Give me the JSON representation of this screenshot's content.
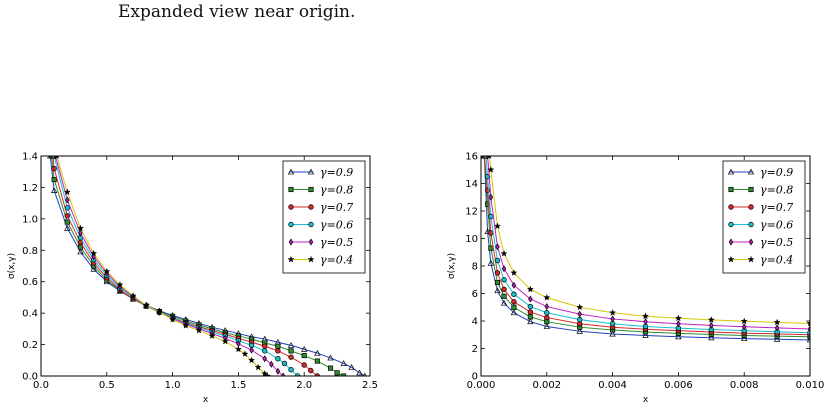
{
  "caption": "Expanded view near origin.",
  "chart_data": [
    {
      "type": "line",
      "xlabel": "x",
      "ylabel": "σ(x,γ)",
      "xlim": [
        0.0,
        2.5
      ],
      "ylim": [
        0.0,
        1.4
      ],
      "xticks": [
        "0.0",
        "0.5",
        "1.0",
        "1.5",
        "2.0",
        "2.5"
      ],
      "yticks": [
        "0.0",
        "0.2",
        "0.4",
        "0.6",
        "0.8",
        "1.0",
        "1.2",
        "1.4"
      ],
      "grid": false,
      "legend_position": "top-right",
      "series": [
        {
          "name": "γ=0.9",
          "color": "#1f3fbf",
          "marker": "triangle",
          "x": [
            0.07,
            0.1,
            0.2,
            0.3,
            0.4,
            0.5,
            0.6,
            0.7,
            0.8,
            0.9,
            1.0,
            1.1,
            1.2,
            1.3,
            1.4,
            1.5,
            1.6,
            1.7,
            1.8,
            1.9,
            2.0,
            2.1,
            2.2,
            2.3,
            2.36,
            2.42,
            2.46
          ],
          "y": [
            1.4,
            1.18,
            0.94,
            0.79,
            0.68,
            0.6,
            0.54,
            0.49,
            0.45,
            0.415,
            0.385,
            0.36,
            0.335,
            0.31,
            0.29,
            0.27,
            0.25,
            0.235,
            0.215,
            0.195,
            0.17,
            0.145,
            0.115,
            0.08,
            0.055,
            0.02,
            0.0
          ]
        },
        {
          "name": "γ=0.8",
          "color": "#2e8b2e",
          "marker": "square",
          "x": [
            0.08,
            0.1,
            0.2,
            0.3,
            0.4,
            0.5,
            0.6,
            0.7,
            0.8,
            0.9,
            1.0,
            1.1,
            1.2,
            1.3,
            1.4,
            1.5,
            1.6,
            1.7,
            1.8,
            1.9,
            2.0,
            2.1,
            2.2,
            2.25,
            2.3
          ],
          "y": [
            1.4,
            1.25,
            0.98,
            0.82,
            0.7,
            0.61,
            0.545,
            0.49,
            0.445,
            0.41,
            0.38,
            0.35,
            0.325,
            0.3,
            0.275,
            0.255,
            0.235,
            0.21,
            0.19,
            0.16,
            0.13,
            0.095,
            0.05,
            0.02,
            0.0
          ]
        },
        {
          "name": "γ=0.7",
          "color": "#d62728",
          "marker": "circle",
          "x": [
            0.09,
            0.1,
            0.2,
            0.3,
            0.4,
            0.5,
            0.6,
            0.7,
            0.8,
            0.9,
            1.0,
            1.1,
            1.2,
            1.3,
            1.4,
            1.5,
            1.6,
            1.7,
            1.8,
            1.9,
            2.0,
            2.05,
            2.1
          ],
          "y": [
            1.4,
            1.32,
            1.02,
            0.85,
            0.72,
            0.625,
            0.55,
            0.49,
            0.445,
            0.405,
            0.37,
            0.34,
            0.315,
            0.29,
            0.265,
            0.24,
            0.215,
            0.19,
            0.16,
            0.12,
            0.07,
            0.035,
            0.0
          ]
        },
        {
          "name": "γ=0.6",
          "color": "#17becf",
          "marker": "circle",
          "x": [
            0.1,
            0.2,
            0.3,
            0.4,
            0.5,
            0.6,
            0.7,
            0.8,
            0.9,
            1.0,
            1.1,
            1.2,
            1.3,
            1.4,
            1.5,
            1.6,
            1.7,
            1.8,
            1.85,
            1.9,
            1.95
          ],
          "y": [
            1.4,
            1.07,
            0.88,
            0.74,
            0.64,
            0.56,
            0.5,
            0.445,
            0.405,
            0.37,
            0.335,
            0.31,
            0.28,
            0.255,
            0.225,
            0.195,
            0.16,
            0.11,
            0.08,
            0.04,
            0.0
          ]
        },
        {
          "name": "γ=0.5",
          "color": "#c020c0",
          "marker": "diamond",
          "x": [
            0.11,
            0.2,
            0.3,
            0.4,
            0.5,
            0.6,
            0.7,
            0.8,
            0.9,
            1.0,
            1.1,
            1.2,
            1.3,
            1.4,
            1.5,
            1.6,
            1.7,
            1.75,
            1.8,
            1.84
          ],
          "y": [
            1.4,
            1.12,
            0.91,
            0.76,
            0.655,
            0.57,
            0.505,
            0.45,
            0.405,
            0.365,
            0.33,
            0.3,
            0.27,
            0.24,
            0.205,
            0.165,
            0.11,
            0.075,
            0.03,
            0.0
          ]
        },
        {
          "name": "γ=0.4",
          "color": "#d4c800",
          "marker": "star",
          "x": [
            0.12,
            0.2,
            0.3,
            0.4,
            0.5,
            0.6,
            0.7,
            0.8,
            0.9,
            1.0,
            1.1,
            1.2,
            1.3,
            1.4,
            1.5,
            1.55,
            1.6,
            1.65,
            1.7,
            1.72
          ],
          "y": [
            1.4,
            1.17,
            0.94,
            0.78,
            0.665,
            0.58,
            0.51,
            0.45,
            0.405,
            0.36,
            0.32,
            0.29,
            0.255,
            0.22,
            0.17,
            0.14,
            0.1,
            0.055,
            0.015,
            0.0
          ]
        }
      ]
    },
    {
      "type": "line",
      "xlabel": "x",
      "ylabel": "σ(x,γ)",
      "xlim": [
        0.0,
        0.01
      ],
      "ylim": [
        0,
        16
      ],
      "xticks": [
        "0.000",
        "0.002",
        "0.004",
        "0.006",
        "0.008",
        "0.010"
      ],
      "yticks": [
        "0",
        "2",
        "4",
        "6",
        "8",
        "10",
        "12",
        "14",
        "16"
      ],
      "grid": false,
      "legend_position": "top-right",
      "series": [
        {
          "name": "γ=0.9",
          "color": "#1f3fbf",
          "marker": "triangle",
          "x": [
            0.0001,
            0.0002,
            0.0003,
            0.0005,
            0.0007,
            0.001,
            0.0015,
            0.002,
            0.003,
            0.004,
            0.005,
            0.006,
            0.007,
            0.008,
            0.009,
            0.01
          ],
          "y": [
            16,
            10.5,
            8.2,
            6.2,
            5.3,
            4.6,
            3.95,
            3.6,
            3.25,
            3.05,
            2.95,
            2.85,
            2.78,
            2.72,
            2.67,
            2.62
          ]
        },
        {
          "name": "γ=0.8",
          "color": "#2e8b2e",
          "marker": "square",
          "x": [
            0.0001,
            0.0002,
            0.0003,
            0.0005,
            0.0007,
            0.001,
            0.0015,
            0.002,
            0.003,
            0.004,
            0.005,
            0.006,
            0.007,
            0.008,
            0.009,
            0.01
          ],
          "y": [
            16,
            12.5,
            9.3,
            6.8,
            5.8,
            5.0,
            4.3,
            3.95,
            3.55,
            3.35,
            3.2,
            3.1,
            3.02,
            2.95,
            2.9,
            2.85
          ]
        },
        {
          "name": "γ=0.7",
          "color": "#d62728",
          "marker": "circle",
          "x": [
            0.0001,
            0.0002,
            0.0003,
            0.0005,
            0.0007,
            0.001,
            0.0015,
            0.002,
            0.003,
            0.004,
            0.005,
            0.006,
            0.007,
            0.008,
            0.009,
            0.01
          ],
          "y": [
            16,
            13.5,
            10.4,
            7.5,
            6.3,
            5.4,
            4.65,
            4.25,
            3.8,
            3.55,
            3.4,
            3.3,
            3.2,
            3.12,
            3.06,
            3.0
          ]
        },
        {
          "name": "γ=0.6",
          "color": "#17becf",
          "marker": "circle",
          "x": [
            0.00015,
            0.0002,
            0.0003,
            0.0005,
            0.0007,
            0.001,
            0.0015,
            0.002,
            0.003,
            0.004,
            0.005,
            0.006,
            0.007,
            0.008,
            0.009,
            0.01
          ],
          "y": [
            16,
            14.5,
            11.6,
            8.4,
            7.0,
            5.95,
            5.05,
            4.6,
            4.1,
            3.8,
            3.6,
            3.48,
            3.38,
            3.3,
            3.22,
            3.15
          ]
        },
        {
          "name": "γ=0.5",
          "color": "#c020c0",
          "marker": "diamond",
          "x": [
            0.0002,
            0.0003,
            0.0005,
            0.0007,
            0.001,
            0.0015,
            0.002,
            0.003,
            0.004,
            0.005,
            0.006,
            0.007,
            0.008,
            0.009,
            0.01
          ],
          "y": [
            16,
            13.0,
            9.4,
            7.8,
            6.6,
            5.6,
            5.05,
            4.5,
            4.15,
            3.95,
            3.8,
            3.68,
            3.58,
            3.5,
            3.42
          ]
        },
        {
          "name": "γ=0.4",
          "color": "#d4c800",
          "marker": "star",
          "x": [
            0.00025,
            0.0003,
            0.0005,
            0.0007,
            0.001,
            0.0015,
            0.002,
            0.003,
            0.004,
            0.005,
            0.006,
            0.007,
            0.008,
            0.009,
            0.01
          ],
          "y": [
            16,
            15.0,
            10.9,
            8.9,
            7.5,
            6.3,
            5.7,
            5.0,
            4.6,
            4.35,
            4.2,
            4.08,
            3.98,
            3.9,
            3.82
          ]
        }
      ]
    }
  ]
}
